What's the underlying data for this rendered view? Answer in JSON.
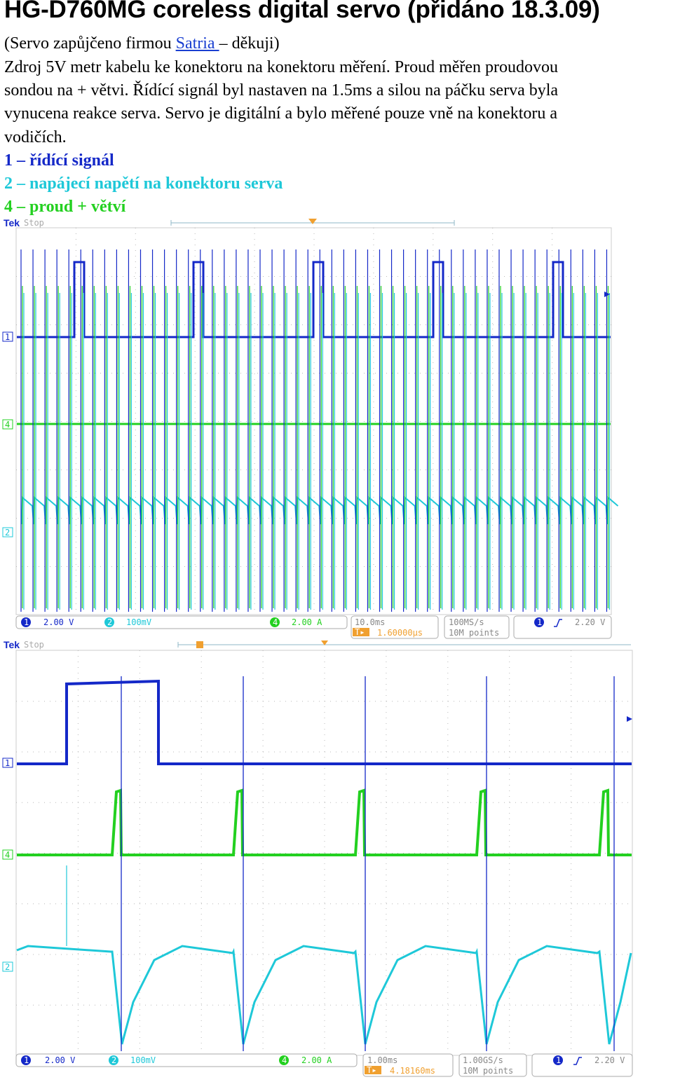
{
  "title": "HG-D760MG coreless digital servo (přidáno 18.3.09)",
  "credit": {
    "before": "(Servo zapůjčeno firmou ",
    "link": "Satria ",
    "after": "– děkuji)"
  },
  "description_lines": [
    "Zdroj 5V metr kabelu ke konektoru na konektoru měření. Proud měřen proudovou",
    "sondou na + větvi. Řídící signál byl nastaven na 1.5ms a silou na páčku serva byla",
    "vynucena reakce serva. Servo je digitální a bylo měřené pouze vně na konektoru a",
    "vodičích."
  ],
  "legend": [
    {
      "text": "1 – řídící signál",
      "color": "#1428c8"
    },
    {
      "text": "2 – napájecí napětí na konektoru serva",
      "color": "#1ec8d8"
    },
    {
      "text": "4 – proud + větví",
      "color": "#23d020"
    }
  ],
  "scope1": {
    "brand": "Tek",
    "state": "Stop",
    "ch1": "2.00 V",
    "ch2": "100mV",
    "ch4": "2.00 A",
    "timebase": "10.0ms",
    "trig_pos": "1.60000µs",
    "rate": "100MS/s",
    "points": "10M points",
    "trig_level": "2.20 V"
  },
  "scope2": {
    "brand": "Tek",
    "state": "Stop",
    "ch1": "2.00 V",
    "ch2": "100mV",
    "ch4": "2.00 A",
    "timebase": "1.00ms",
    "trig_pos": "4.18160ms",
    "rate": "1.00GS/s",
    "points": "10M points",
    "trig_level": "2.20 V"
  },
  "colors": {
    "ch1": "#1428c8",
    "ch2": "#1ec8d8",
    "ch4": "#23d020"
  },
  "chart_data": [
    {
      "type": "line",
      "series": [
        {
          "name": "1",
          "description_pulse_ms": 1.5
        },
        {
          "name": "2"
        },
        {
          "name": "4"
        }
      ]
    },
    {
      "type": "line",
      "series": [
        {
          "name": "1"
        },
        {
          "name": "2"
        },
        {
          "name": "4"
        }
      ]
    }
  ]
}
